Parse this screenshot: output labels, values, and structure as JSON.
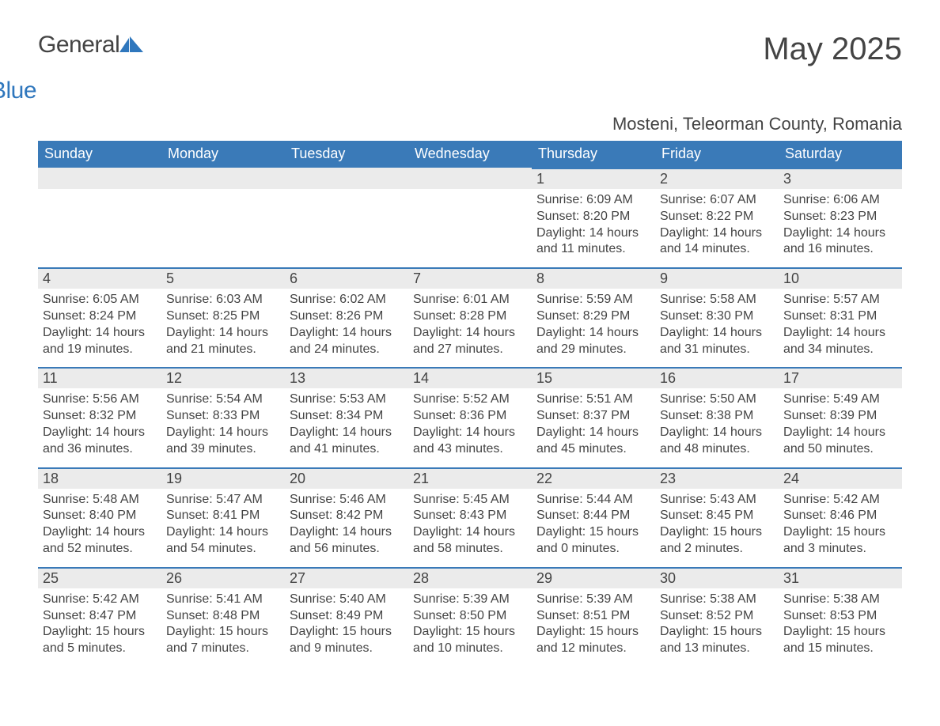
{
  "logo": {
    "text_general": "General",
    "text_blue": "Blue"
  },
  "page_title": "May 2025",
  "location": "Mosteni, Teleorman County, Romania",
  "colors": {
    "header_bg": "#3a7ab8",
    "header_text": "#ffffff",
    "day_number_bg": "#ebebeb",
    "day_border_top": "#3a7ab8",
    "body_text": "#444444",
    "logo_blue": "#2f77bd",
    "background": "#ffffff"
  },
  "typography": {
    "title_fontsize": 40,
    "location_fontsize": 22,
    "header_fontsize": 18,
    "daynum_fontsize": 18,
    "body_fontsize": 16
  },
  "weekdays": [
    "Sunday",
    "Monday",
    "Tuesday",
    "Wednesday",
    "Thursday",
    "Friday",
    "Saturday"
  ],
  "weeks": [
    [
      null,
      null,
      null,
      null,
      {
        "num": "1",
        "sunrise": "6:09 AM",
        "sunset": "8:20 PM",
        "daylight": "14 hours and 11 minutes."
      },
      {
        "num": "2",
        "sunrise": "6:07 AM",
        "sunset": "8:22 PM",
        "daylight": "14 hours and 14 minutes."
      },
      {
        "num": "3",
        "sunrise": "6:06 AM",
        "sunset": "8:23 PM",
        "daylight": "14 hours and 16 minutes."
      }
    ],
    [
      {
        "num": "4",
        "sunrise": "6:05 AM",
        "sunset": "8:24 PM",
        "daylight": "14 hours and 19 minutes."
      },
      {
        "num": "5",
        "sunrise": "6:03 AM",
        "sunset": "8:25 PM",
        "daylight": "14 hours and 21 minutes."
      },
      {
        "num": "6",
        "sunrise": "6:02 AM",
        "sunset": "8:26 PM",
        "daylight": "14 hours and 24 minutes."
      },
      {
        "num": "7",
        "sunrise": "6:01 AM",
        "sunset": "8:28 PM",
        "daylight": "14 hours and 27 minutes."
      },
      {
        "num": "8",
        "sunrise": "5:59 AM",
        "sunset": "8:29 PM",
        "daylight": "14 hours and 29 minutes."
      },
      {
        "num": "9",
        "sunrise": "5:58 AM",
        "sunset": "8:30 PM",
        "daylight": "14 hours and 31 minutes."
      },
      {
        "num": "10",
        "sunrise": "5:57 AM",
        "sunset": "8:31 PM",
        "daylight": "14 hours and 34 minutes."
      }
    ],
    [
      {
        "num": "11",
        "sunrise": "5:56 AM",
        "sunset": "8:32 PM",
        "daylight": "14 hours and 36 minutes."
      },
      {
        "num": "12",
        "sunrise": "5:54 AM",
        "sunset": "8:33 PM",
        "daylight": "14 hours and 39 minutes."
      },
      {
        "num": "13",
        "sunrise": "5:53 AM",
        "sunset": "8:34 PM",
        "daylight": "14 hours and 41 minutes."
      },
      {
        "num": "14",
        "sunrise": "5:52 AM",
        "sunset": "8:36 PM",
        "daylight": "14 hours and 43 minutes."
      },
      {
        "num": "15",
        "sunrise": "5:51 AM",
        "sunset": "8:37 PM",
        "daylight": "14 hours and 45 minutes."
      },
      {
        "num": "16",
        "sunrise": "5:50 AM",
        "sunset": "8:38 PM",
        "daylight": "14 hours and 48 minutes."
      },
      {
        "num": "17",
        "sunrise": "5:49 AM",
        "sunset": "8:39 PM",
        "daylight": "14 hours and 50 minutes."
      }
    ],
    [
      {
        "num": "18",
        "sunrise": "5:48 AM",
        "sunset": "8:40 PM",
        "daylight": "14 hours and 52 minutes."
      },
      {
        "num": "19",
        "sunrise": "5:47 AM",
        "sunset": "8:41 PM",
        "daylight": "14 hours and 54 minutes."
      },
      {
        "num": "20",
        "sunrise": "5:46 AM",
        "sunset": "8:42 PM",
        "daylight": "14 hours and 56 minutes."
      },
      {
        "num": "21",
        "sunrise": "5:45 AM",
        "sunset": "8:43 PM",
        "daylight": "14 hours and 58 minutes."
      },
      {
        "num": "22",
        "sunrise": "5:44 AM",
        "sunset": "8:44 PM",
        "daylight": "15 hours and 0 minutes."
      },
      {
        "num": "23",
        "sunrise": "5:43 AM",
        "sunset": "8:45 PM",
        "daylight": "15 hours and 2 minutes."
      },
      {
        "num": "24",
        "sunrise": "5:42 AM",
        "sunset": "8:46 PM",
        "daylight": "15 hours and 3 minutes."
      }
    ],
    [
      {
        "num": "25",
        "sunrise": "5:42 AM",
        "sunset": "8:47 PM",
        "daylight": "15 hours and 5 minutes."
      },
      {
        "num": "26",
        "sunrise": "5:41 AM",
        "sunset": "8:48 PM",
        "daylight": "15 hours and 7 minutes."
      },
      {
        "num": "27",
        "sunrise": "5:40 AM",
        "sunset": "8:49 PM",
        "daylight": "15 hours and 9 minutes."
      },
      {
        "num": "28",
        "sunrise": "5:39 AM",
        "sunset": "8:50 PM",
        "daylight": "15 hours and 10 minutes."
      },
      {
        "num": "29",
        "sunrise": "5:39 AM",
        "sunset": "8:51 PM",
        "daylight": "15 hours and 12 minutes."
      },
      {
        "num": "30",
        "sunrise": "5:38 AM",
        "sunset": "8:52 PM",
        "daylight": "15 hours and 13 minutes."
      },
      {
        "num": "31",
        "sunrise": "5:38 AM",
        "sunset": "8:53 PM",
        "daylight": "15 hours and 15 minutes."
      }
    ]
  ],
  "labels": {
    "sunrise_prefix": "Sunrise: ",
    "sunset_prefix": "Sunset: ",
    "daylight_prefix": "Daylight: "
  }
}
